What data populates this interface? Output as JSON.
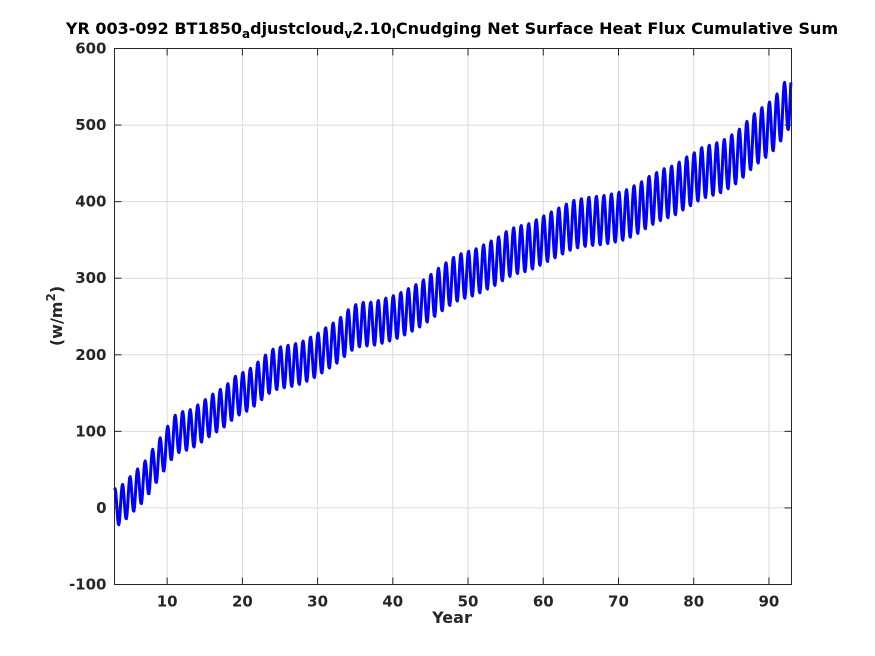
{
  "chart_data": {
    "type": "line",
    "title": {
      "segments": [
        {
          "text": "YR 003-092 BT1850",
          "sub": false
        },
        {
          "text": "a",
          "sub": true
        },
        {
          "text": "djustcloud",
          "sub": false
        },
        {
          "text": "v",
          "sub": true
        },
        {
          "text": "2.10",
          "sub": false
        },
        {
          "text": "l",
          "sub": true
        },
        {
          "text": "Cnudging Net Surface Heat Flux  Cumulative Sum",
          "sub": false
        }
      ]
    },
    "xlabel": "Year",
    "ylabel": {
      "base": "(w/m",
      "sup": "2",
      "close": ")"
    },
    "xlim": [
      3,
      93
    ],
    "ylim": [
      -100,
      600
    ],
    "xticks": [
      10,
      20,
      30,
      40,
      50,
      60,
      70,
      80,
      90
    ],
    "yticks": [
      -100,
      0,
      100,
      200,
      300,
      400,
      500,
      600
    ],
    "grid": true,
    "legend": "none",
    "series": [
      {
        "color": "#0000ff",
        "line_width": 3,
        "samples_per_year": 12,
        "seasonal_cycle": "annual oscillation, peak-to-trough about 65 (w/m^2)",
        "annual_mean": {
          "x": [
            3,
            4,
            5,
            6,
            7,
            8,
            9,
            10,
            11,
            12,
            13,
            14,
            15,
            16,
            17,
            18,
            19,
            20,
            21,
            22,
            23,
            24,
            25,
            26,
            27,
            28,
            29,
            30,
            31,
            32,
            33,
            34,
            35,
            36,
            37,
            38,
            39,
            40,
            41,
            42,
            43,
            44,
            45,
            46,
            47,
            48,
            49,
            50,
            51,
            52,
            53,
            54,
            55,
            56,
            57,
            58,
            59,
            60,
            61,
            62,
            63,
            64,
            65,
            66,
            67,
            68,
            69,
            70,
            71,
            72,
            73,
            74,
            75,
            76,
            77,
            78,
            79,
            80,
            81,
            82,
            83,
            84,
            85,
            86,
            87,
            88,
            89,
            90,
            91,
            92,
            93
          ],
          "y": [
            0,
            5,
            15,
            25,
            35,
            50,
            65,
            80,
            95,
            100,
            102,
            108,
            115,
            122,
            128,
            135,
            145,
            150,
            155,
            163,
            172,
            180,
            183,
            185,
            187,
            190,
            195,
            200,
            207,
            213,
            220,
            230,
            237,
            240,
            240,
            242,
            245,
            248,
            252,
            257,
            262,
            268,
            275,
            283,
            290,
            297,
            302,
            305,
            308,
            313,
            318,
            323,
            330,
            335,
            338,
            340,
            345,
            350,
            355,
            360,
            365,
            370,
            372,
            374,
            375,
            376,
            378,
            380,
            383,
            388,
            393,
            400,
            405,
            410,
            413,
            418,
            425,
            430,
            437,
            440,
            443,
            447,
            453,
            460,
            470,
            480,
            488,
            495,
            505,
            520,
            535
          ]
        }
      }
    ]
  }
}
